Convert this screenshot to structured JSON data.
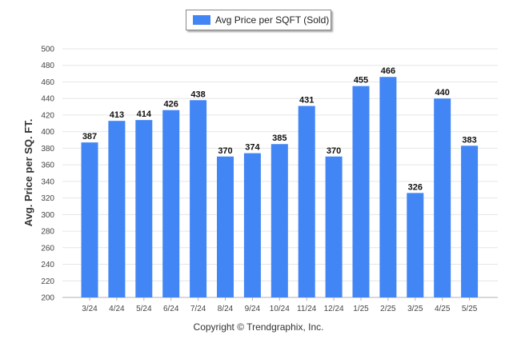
{
  "legend": {
    "label": "Avg Price per SQFT (Sold)"
  },
  "footer": {
    "copyright": "Copyright © Trendgraphix, Inc."
  },
  "colors": {
    "bar": "#4285f4",
    "grid": "#e6e6e6",
    "axis": "#b0b0b0"
  },
  "chart_data": {
    "type": "bar",
    "categories": [
      "3/24",
      "4/24",
      "5/24",
      "6/24",
      "7/24",
      "8/24",
      "9/24",
      "10/24",
      "11/24",
      "12/24",
      "1/25",
      "2/25",
      "3/25",
      "4/25",
      "5/25"
    ],
    "values": [
      387,
      413,
      414,
      426,
      438,
      370,
      374,
      385,
      431,
      370,
      455,
      466,
      326,
      440,
      383
    ],
    "ylabel": "Avg. Price per SQ. FT.",
    "ylim": [
      200,
      500
    ],
    "yticks": [
      200,
      220,
      240,
      260,
      280,
      300,
      320,
      340,
      360,
      380,
      400,
      420,
      440,
      460,
      480,
      500
    ],
    "grid": true,
    "legend_position": "top-center",
    "data_labels": true
  }
}
